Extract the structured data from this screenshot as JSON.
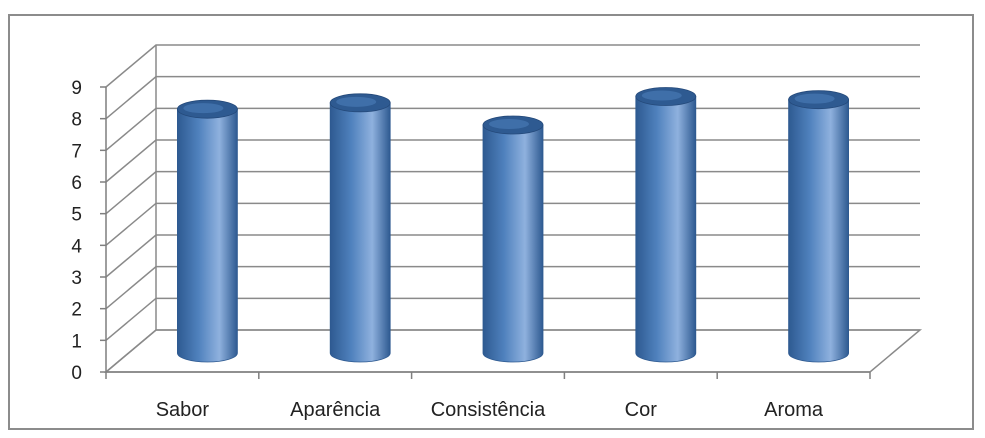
{
  "chart_data": {
    "type": "bar",
    "style": "3d-cylinder",
    "title": "",
    "xlabel": "",
    "ylabel": "",
    "categories": [
      "Sabor",
      "Aparência",
      "Consistência",
      "Cor",
      "Aroma"
    ],
    "series": [
      {
        "values": [
          7.7,
          7.9,
          7.2,
          8.1,
          8.0
        ]
      }
    ],
    "ylim": [
      0,
      9
    ],
    "yticks": [
      0,
      1,
      2,
      3,
      4,
      5,
      6,
      7,
      8,
      9
    ],
    "grid": true,
    "legend": "none",
    "colors": {
      "bar": "#4f81bd",
      "bar_dark": "#2e5a91",
      "bar_light": "#8fb1de",
      "grid": "#8a8a8a",
      "axis": "#7f7f7f",
      "frame": "#8c8c8c"
    }
  }
}
